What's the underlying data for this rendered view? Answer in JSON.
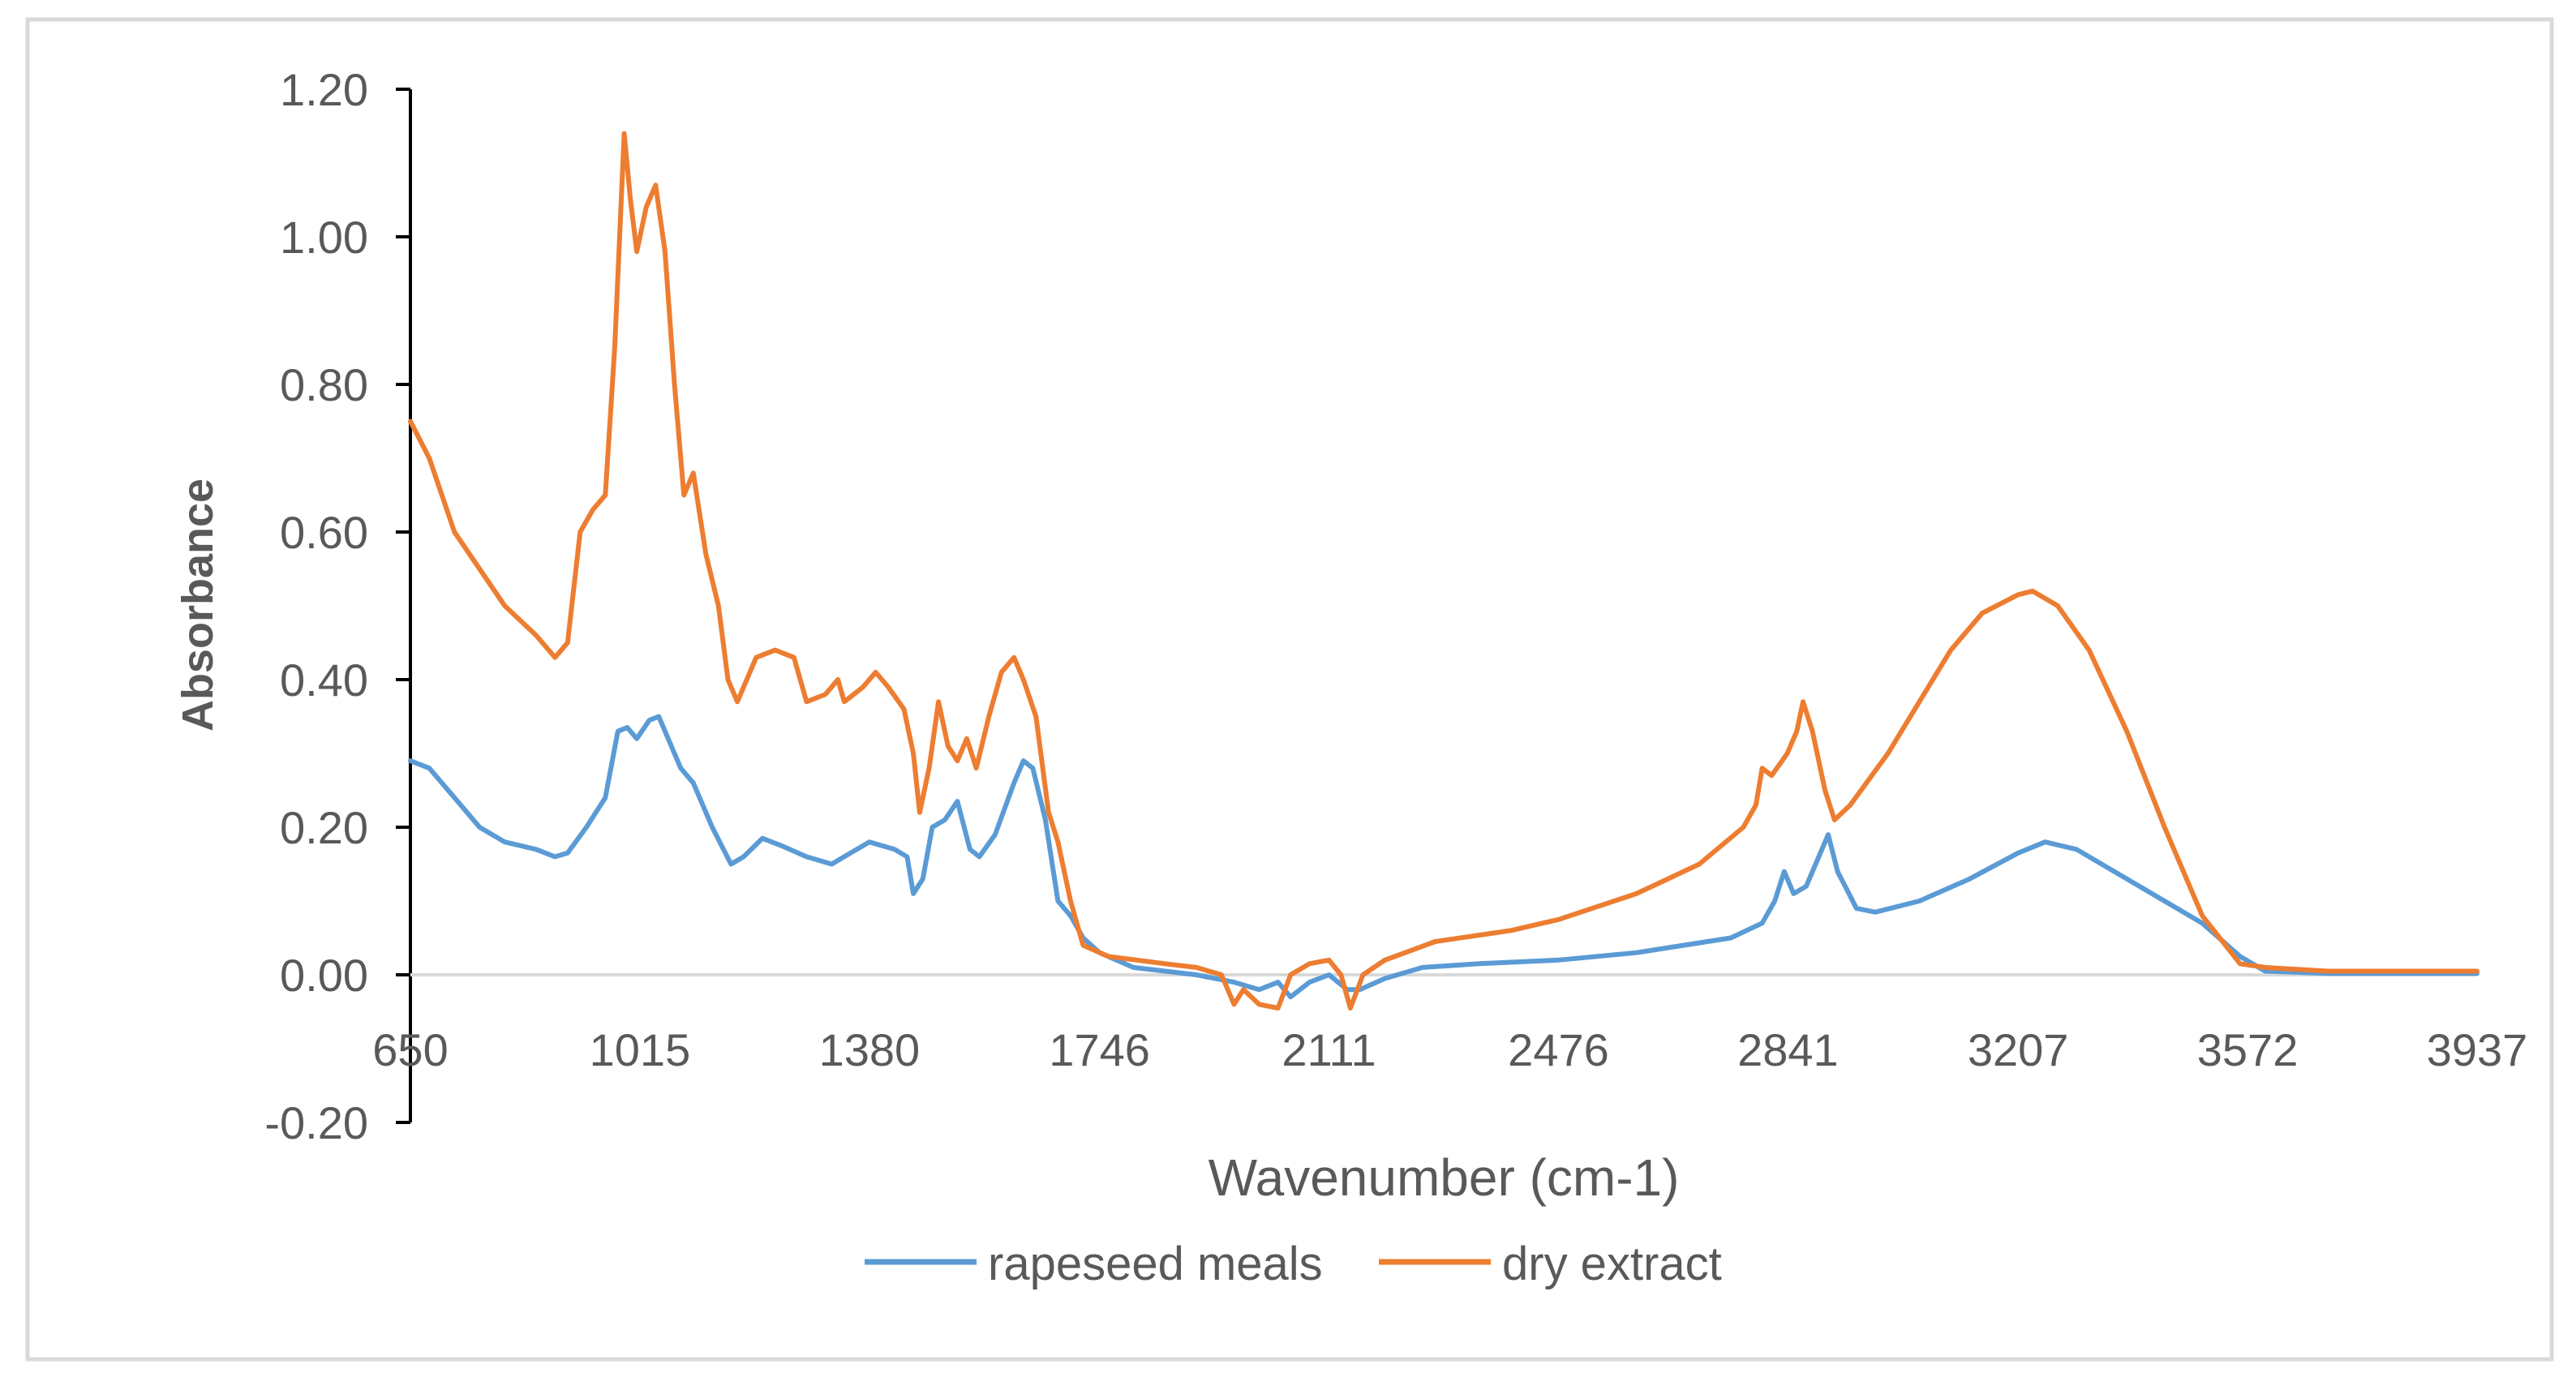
{
  "chart_data": {
    "type": "line",
    "title": "",
    "xlabel": "Wavenumber (cm-1)",
    "ylabel": "Absorbance",
    "xlim": [
      650,
      3937
    ],
    "ylim": [
      -0.2,
      1.2
    ],
    "x_ticks": [
      "650",
      "1015",
      "1380",
      "1746",
      "2111",
      "2476",
      "2841",
      "3207",
      "3572",
      "3937"
    ],
    "y_ticks": [
      "1.20",
      "1.00",
      "0.80",
      "0.60",
      "0.40",
      "0.20",
      "0.00",
      "-0.20"
    ],
    "grid": false,
    "legend_position": "bottom",
    "series": [
      {
        "name": "rapeseed meals",
        "color": "#5b9bd5",
        "points": [
          [
            650,
            0.29
          ],
          [
            680,
            0.28
          ],
          [
            720,
            0.24
          ],
          [
            760,
            0.2
          ],
          [
            800,
            0.18
          ],
          [
            850,
            0.17
          ],
          [
            880,
            0.16
          ],
          [
            900,
            0.165
          ],
          [
            930,
            0.2
          ],
          [
            960,
            0.24
          ],
          [
            980,
            0.33
          ],
          [
            995,
            0.335
          ],
          [
            1010,
            0.32
          ],
          [
            1030,
            0.345
          ],
          [
            1045,
            0.35
          ],
          [
            1060,
            0.32
          ],
          [
            1080,
            0.28
          ],
          [
            1100,
            0.26
          ],
          [
            1130,
            0.2
          ],
          [
            1160,
            0.15
          ],
          [
            1180,
            0.16
          ],
          [
            1210,
            0.185
          ],
          [
            1240,
            0.175
          ],
          [
            1280,
            0.16
          ],
          [
            1320,
            0.15
          ],
          [
            1350,
            0.165
          ],
          [
            1380,
            0.18
          ],
          [
            1400,
            0.175
          ],
          [
            1420,
            0.17
          ],
          [
            1440,
            0.16
          ],
          [
            1450,
            0.11
          ],
          [
            1465,
            0.13
          ],
          [
            1480,
            0.2
          ],
          [
            1500,
            0.21
          ],
          [
            1520,
            0.235
          ],
          [
            1540,
            0.17
          ],
          [
            1555,
            0.16
          ],
          [
            1580,
            0.19
          ],
          [
            1610,
            0.26
          ],
          [
            1625,
            0.29
          ],
          [
            1640,
            0.28
          ],
          [
            1660,
            0.21
          ],
          [
            1680,
            0.1
          ],
          [
            1700,
            0.08
          ],
          [
            1720,
            0.05
          ],
          [
            1746,
            0.03
          ],
          [
            1800,
            0.01
          ],
          [
            1900,
            0.0
          ],
          [
            1960,
            -0.01
          ],
          [
            2000,
            -0.02
          ],
          [
            2030,
            -0.01
          ],
          [
            2050,
            -0.03
          ],
          [
            2080,
            -0.01
          ],
          [
            2111,
            0.0
          ],
          [
            2140,
            -0.02
          ],
          [
            2160,
            -0.02
          ],
          [
            2200,
            -0.005
          ],
          [
            2260,
            0.01
          ],
          [
            2350,
            0.015
          ],
          [
            2476,
            0.02
          ],
          [
            2600,
            0.03
          ],
          [
            2750,
            0.05
          ],
          [
            2800,
            0.07
          ],
          [
            2820,
            0.1
          ],
          [
            2835,
            0.14
          ],
          [
            2850,
            0.11
          ],
          [
            2870,
            0.12
          ],
          [
            2895,
            0.17
          ],
          [
            2905,
            0.19
          ],
          [
            2920,
            0.14
          ],
          [
            2950,
            0.09
          ],
          [
            2980,
            0.085
          ],
          [
            3050,
            0.1
          ],
          [
            3130,
            0.13
          ],
          [
            3207,
            0.165
          ],
          [
            3250,
            0.18
          ],
          [
            3300,
            0.17
          ],
          [
            3400,
            0.12
          ],
          [
            3500,
            0.07
          ],
          [
            3560,
            0.025
          ],
          [
            3600,
            0.005
          ],
          [
            3700,
            0.002
          ],
          [
            3937,
            0.002
          ]
        ]
      },
      {
        "name": "dry extract",
        "color": "#ed7d31",
        "points": [
          [
            650,
            0.75
          ],
          [
            680,
            0.7
          ],
          [
            720,
            0.6
          ],
          [
            760,
            0.55
          ],
          [
            800,
            0.5
          ],
          [
            850,
            0.46
          ],
          [
            880,
            0.43
          ],
          [
            900,
            0.45
          ],
          [
            920,
            0.6
          ],
          [
            940,
            0.63
          ],
          [
            960,
            0.65
          ],
          [
            975,
            0.85
          ],
          [
            990,
            1.14
          ],
          [
            1000,
            1.05
          ],
          [
            1010,
            0.98
          ],
          [
            1025,
            1.04
          ],
          [
            1040,
            1.07
          ],
          [
            1055,
            0.98
          ],
          [
            1070,
            0.8
          ],
          [
            1085,
            0.65
          ],
          [
            1100,
            0.68
          ],
          [
            1120,
            0.57
          ],
          [
            1140,
            0.5
          ],
          [
            1155,
            0.4
          ],
          [
            1170,
            0.37
          ],
          [
            1200,
            0.43
          ],
          [
            1230,
            0.44
          ],
          [
            1260,
            0.43
          ],
          [
            1280,
            0.37
          ],
          [
            1310,
            0.38
          ],
          [
            1330,
            0.4
          ],
          [
            1340,
            0.37
          ],
          [
            1370,
            0.39
          ],
          [
            1390,
            0.41
          ],
          [
            1410,
            0.39
          ],
          [
            1435,
            0.36
          ],
          [
            1450,
            0.3
          ],
          [
            1460,
            0.22
          ],
          [
            1475,
            0.28
          ],
          [
            1490,
            0.37
          ],
          [
            1505,
            0.31
          ],
          [
            1520,
            0.29
          ],
          [
            1535,
            0.32
          ],
          [
            1550,
            0.28
          ],
          [
            1570,
            0.35
          ],
          [
            1590,
            0.41
          ],
          [
            1610,
            0.43
          ],
          [
            1625,
            0.4
          ],
          [
            1645,
            0.35
          ],
          [
            1665,
            0.22
          ],
          [
            1680,
            0.18
          ],
          [
            1700,
            0.1
          ],
          [
            1720,
            0.04
          ],
          [
            1760,
            0.025
          ],
          [
            1850,
            0.015
          ],
          [
            1900,
            0.01
          ],
          [
            1940,
            0.0
          ],
          [
            1960,
            -0.04
          ],
          [
            1975,
            -0.02
          ],
          [
            2000,
            -0.04
          ],
          [
            2030,
            -0.045
          ],
          [
            2050,
            0.0
          ],
          [
            2080,
            0.015
          ],
          [
            2111,
            0.02
          ],
          [
            2130,
            0.0
          ],
          [
            2145,
            -0.045
          ],
          [
            2165,
            0.0
          ],
          [
            2200,
            0.02
          ],
          [
            2280,
            0.045
          ],
          [
            2400,
            0.06
          ],
          [
            2476,
            0.075
          ],
          [
            2600,
            0.11
          ],
          [
            2700,
            0.15
          ],
          [
            2770,
            0.2
          ],
          [
            2790,
            0.23
          ],
          [
            2800,
            0.28
          ],
          [
            2815,
            0.27
          ],
          [
            2840,
            0.3
          ],
          [
            2855,
            0.33
          ],
          [
            2865,
            0.37
          ],
          [
            2880,
            0.33
          ],
          [
            2900,
            0.25
          ],
          [
            2915,
            0.21
          ],
          [
            2940,
            0.23
          ],
          [
            3000,
            0.3
          ],
          [
            3050,
            0.37
          ],
          [
            3100,
            0.44
          ],
          [
            3150,
            0.49
          ],
          [
            3207,
            0.515
          ],
          [
            3230,
            0.52
          ],
          [
            3270,
            0.5
          ],
          [
            3320,
            0.44
          ],
          [
            3380,
            0.33
          ],
          [
            3440,
            0.2
          ],
          [
            3500,
            0.08
          ],
          [
            3560,
            0.015
          ],
          [
            3600,
            0.01
          ],
          [
            3700,
            0.005
          ],
          [
            3937,
            0.005
          ]
        ]
      }
    ]
  }
}
